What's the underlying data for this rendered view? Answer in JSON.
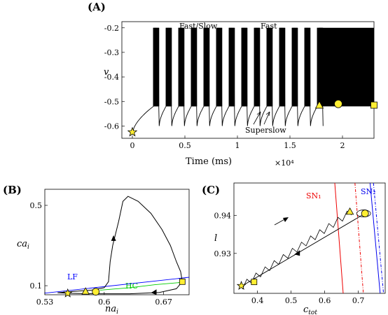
{
  "colors": {
    "marker_fill": "#ffee33",
    "marker_stroke": "#000000",
    "LF": "#0000ff",
    "HC": "#00cc00",
    "SN1": "#ee0000",
    "SN2": "#0000ee",
    "trace": "#000000"
  },
  "chart_data": [
    {
      "id": "A",
      "type": "line",
      "panel_label": "(A)",
      "xlabel": "Time (ms)",
      "x_multiplier": "×10⁴",
      "ylabel": "v",
      "xlim": [
        -0.1,
        2.3
      ],
      "ylim": [
        -0.65,
        -0.175
      ],
      "xticks": [
        0,
        0.5,
        1,
        1.5,
        2
      ],
      "xtick_labels": [
        "0",
        "0.5",
        "1",
        "1.5",
        "2"
      ],
      "yticks": [
        -0.2,
        -0.3,
        -0.4,
        -0.5,
        -0.6
      ],
      "ytick_labels": [
        "-0.2",
        "-0.3",
        "-0.4",
        "-0.5",
        "-0.6"
      ],
      "regime_labels": [
        "Fast/Slow",
        "Fast"
      ],
      "annotation": "Superslow",
      "series": [
        {
          "description": "bursting voltage trace",
          "burst_start_times": [
            0.2,
            0.32,
            0.44,
            0.56,
            0.68,
            0.8,
            0.92,
            1.04,
            1.16,
            1.28,
            1.4,
            1.52,
            1.64,
            1.76
          ],
          "burst_duration": 0.055,
          "spike_top": -0.2,
          "spike_bottom": -0.52,
          "silent_min": -0.63,
          "continuous_fast_interval": [
            1.78,
            2.3
          ]
        }
      ],
      "markers": [
        {
          "shape": "star",
          "x": 0,
          "y": -0.625
        },
        {
          "shape": "triangle",
          "x": 1.78,
          "y": -0.515
        },
        {
          "shape": "circle",
          "x": 1.96,
          "y": -0.51
        },
        {
          "shape": "square",
          "x": 2.3,
          "y": -0.515
        }
      ]
    },
    {
      "id": "B",
      "type": "line",
      "panel_label": "(B)",
      "xlabel": "na",
      "xlabel_sub": "i",
      "ylabel": "ca",
      "ylabel_sub": "i",
      "xlim": [
        0.53,
        0.7
      ],
      "ylim": [
        0.055,
        0.58
      ],
      "xticks": [
        0.53,
        0.6,
        0.67
      ],
      "xtick_labels": [
        "0.53",
        "0.6",
        "0.67"
      ],
      "yticks": [
        0.1,
        0.5
      ],
      "ytick_labels": [
        "0.1",
        "0.5"
      ],
      "curve_labels": [
        "LF",
        "HC"
      ],
      "LF_line": [
        [
          0.53,
          0.063
        ],
        [
          0.7,
          0.142
        ]
      ],
      "HC_curve": [
        [
          0.595,
          0.078
        ],
        [
          0.63,
          0.09
        ],
        [
          0.66,
          0.105
        ],
        [
          0.695,
          0.118
        ]
      ],
      "trajectory": [
        [
          0.545,
          0.065
        ],
        [
          0.565,
          0.072
        ],
        [
          0.585,
          0.078
        ],
        [
          0.6,
          0.09
        ],
        [
          0.605,
          0.12
        ],
        [
          0.607,
          0.22
        ],
        [
          0.61,
          0.3
        ],
        [
          0.617,
          0.42
        ],
        [
          0.622,
          0.52
        ],
        [
          0.628,
          0.545
        ],
        [
          0.64,
          0.52
        ],
        [
          0.655,
          0.46
        ],
        [
          0.668,
          0.38
        ],
        [
          0.678,
          0.3
        ],
        [
          0.685,
          0.22
        ],
        [
          0.69,
          0.17
        ],
        [
          0.692,
          0.12
        ],
        [
          0.685,
          0.085
        ],
        [
          0.665,
          0.066
        ],
        [
          0.63,
          0.06
        ],
        [
          0.59,
          0.06
        ],
        [
          0.56,
          0.062
        ],
        [
          0.545,
          0.065
        ]
      ],
      "markers": [
        {
          "shape": "star",
          "x": 0.557,
          "y": 0.062
        },
        {
          "shape": "triangle",
          "x": 0.578,
          "y": 0.072
        },
        {
          "shape": "circle",
          "x": 0.59,
          "y": 0.07
        },
        {
          "shape": "square",
          "x": 0.692,
          "y": 0.12
        }
      ]
    },
    {
      "id": "C",
      "type": "line",
      "panel_label": "(C)",
      "xlabel": "c",
      "xlabel_sub": "tot",
      "ylabel": "l",
      "xlim": [
        0.33,
        0.78
      ],
      "ylim": [
        0.9195,
        0.9485
      ],
      "xticks": [
        0.4,
        0.5,
        0.6,
        0.7
      ],
      "xtick_labels": [
        "0.4",
        "0.5",
        "0.6",
        "0.7"
      ],
      "yticks": [
        0.93,
        0.94
      ],
      "ytick_labels": [
        "0.93",
        "0.94"
      ],
      "curve_labels": [
        "SN₁",
        "SN₂"
      ],
      "SN1_solid": [
        [
          0.63,
          0.9485
        ],
        [
          0.655,
          0.9195
        ]
      ],
      "SN1_dashed": [
        [
          0.69,
          0.9485
        ],
        [
          0.715,
          0.9195
        ]
      ],
      "SN2_solid": [
        [
          0.735,
          0.9485
        ],
        [
          0.765,
          0.9195
        ]
      ],
      "SN2_dashed": [
        [
          0.745,
          0.9485
        ],
        [
          0.775,
          0.9195
        ]
      ],
      "return_line": [
        [
          0.72,
          0.9405
        ],
        [
          0.355,
          0.9215
        ]
      ],
      "zigzag_start": [
        0.355,
        0.9215
      ],
      "zigzag_end": [
        0.68,
        0.941
      ],
      "markers": [
        {
          "shape": "star",
          "x": 0.352,
          "y": 0.9215
        },
        {
          "shape": "square",
          "x": 0.39,
          "y": 0.9225
        },
        {
          "shape": "triangle",
          "x": 0.675,
          "y": 0.941
        },
        {
          "shape": "circle",
          "x": 0.72,
          "y": 0.9405
        }
      ]
    }
  ]
}
